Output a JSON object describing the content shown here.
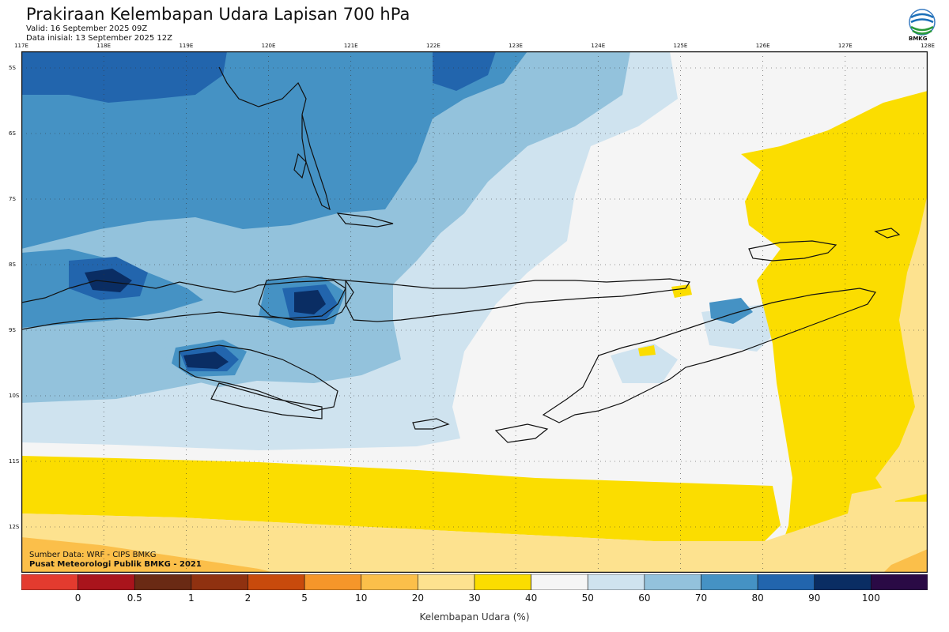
{
  "title": "Prakiraan Kelembapan Udara Lapisan 700 hPa",
  "valid": "Valid: 16 September 2025 09Z",
  "initial": "Data inisial: 13 September 2025 12Z",
  "logo": {
    "text": "BMKG",
    "icon": "bmkg-logo-icon"
  },
  "longitudes": [
    "117E",
    "118E",
    "119E",
    "120E",
    "121E",
    "122E",
    "123E",
    "124E",
    "125E",
    "126E",
    "127E",
    "128E"
  ],
  "latitudes": [
    "5S",
    "6S",
    "7S",
    "8S",
    "9S",
    "10S",
    "11S",
    "12S"
  ],
  "credits": {
    "source": "Sumber Data: WRF - CIPS BMKG",
    "org": "Pusat Meteorologi Publik BMKG - 2021"
  },
  "legend": {
    "title": "Kelembapan Udara (%)",
    "labels": [
      "0",
      "0.5",
      "1",
      "2",
      "5",
      "10",
      "20",
      "30",
      "40",
      "50",
      "60",
      "70",
      "80",
      "90",
      "100"
    ],
    "colors": [
      "#e33b2f",
      "#a9141c",
      "#6a2a14",
      "#8f3110",
      "#c84a0c",
      "#f5962a",
      "#fbbf4a",
      "#fde28f",
      "#fbdd00",
      "#f5f5f5",
      "#cfe3ef",
      "#93c2dc",
      "#4592c4",
      "#2265ad",
      "#0a2d63",
      "#2a0a45"
    ]
  },
  "chart_data": {
    "type": "heatmap",
    "variable": "Kelembapan Udara (%)",
    "level": "700 hPa",
    "lon_range": [
      117,
      128
    ],
    "lat_range_south": [
      5,
      12
    ],
    "bins": [
      0,
      0.5,
      1,
      2,
      5,
      10,
      20,
      30,
      40,
      50,
      60,
      70,
      80,
      90,
      100
    ]
  }
}
